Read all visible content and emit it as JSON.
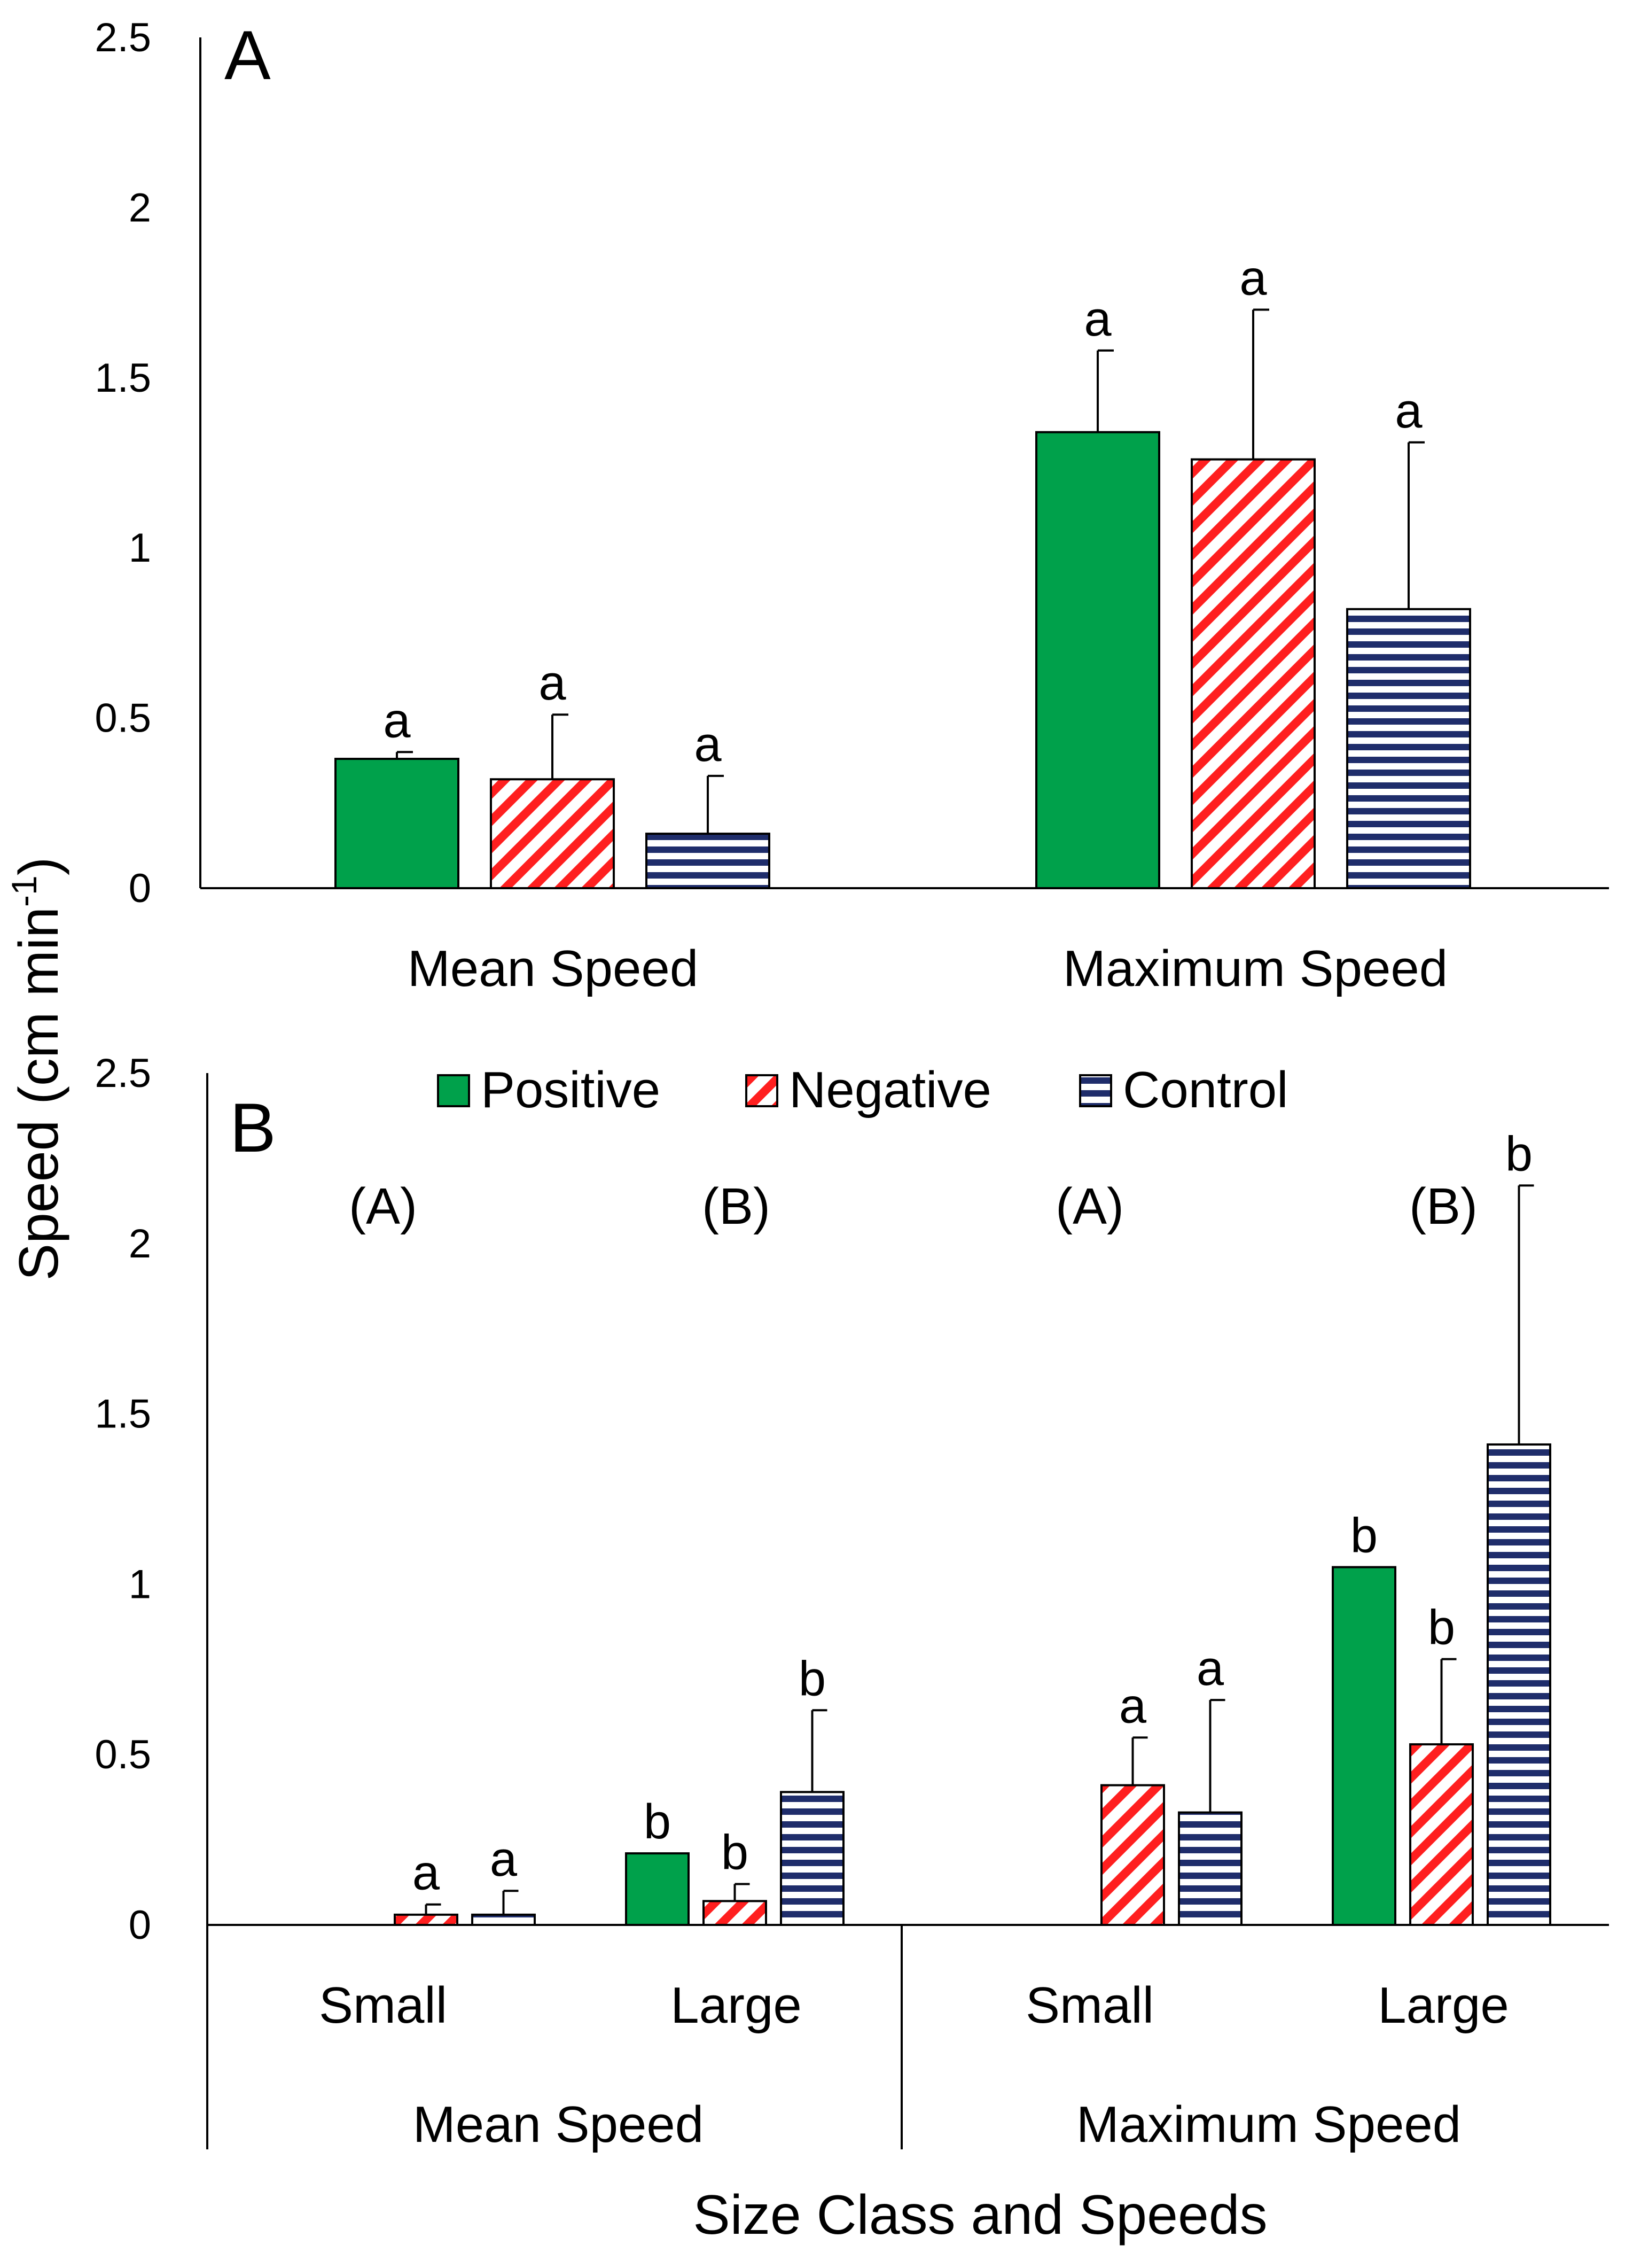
{
  "figure": {
    "ylabel": "Speed (cm min",
    "ylabel_sup": "-1",
    "ylabel_close": ")",
    "xlabel": "Size Class and Speeds"
  },
  "legend": [
    {
      "name": "Positive",
      "pattern": "solid"
    },
    {
      "name": "Negative",
      "pattern": "diagonal"
    },
    {
      "name": "Control",
      "pattern": "horizontal"
    }
  ],
  "colors": {
    "positive": "#00A14B",
    "negative": "#FF1F1F",
    "control": "#1F2D6B",
    "axis": "#000000"
  },
  "chart_data": [
    {
      "panel": "A",
      "type": "bar",
      "ylim": [
        0,
        2.5
      ],
      "yticks": [
        "0",
        "0.5",
        "1",
        "1.5",
        "2",
        "2.5"
      ],
      "categories": [
        "Mean Speed",
        "Maximum Speed"
      ],
      "series": [
        {
          "name": "Positive",
          "values": [
            0.38,
            1.34
          ],
          "errors": [
            0.02,
            0.24
          ],
          "letters": [
            "a",
            "a"
          ]
        },
        {
          "name": "Negative",
          "values": [
            0.32,
            1.26
          ],
          "errors": [
            0.19,
            0.44
          ],
          "letters": [
            "a",
            "a"
          ]
        },
        {
          "name": "Control",
          "values": [
            0.16,
            0.82
          ],
          "errors": [
            0.17,
            0.49
          ],
          "letters": [
            "a",
            "a"
          ]
        }
      ]
    },
    {
      "panel": "B",
      "type": "bar",
      "ylim": [
        0,
        2.5
      ],
      "yticks": [
        "0",
        "0.5",
        "1",
        "1.5",
        "2",
        "2.5"
      ],
      "groups": [
        "Mean Speed",
        "Maximum Speed"
      ],
      "categories": [
        "Small",
        "Large",
        "Small",
        "Large"
      ],
      "group_of_category": [
        0,
        0,
        1,
        1
      ],
      "group_letters": [
        "(A)",
        "(B)",
        "(A)",
        "(B)"
      ],
      "series": [
        {
          "name": "Positive",
          "values": [
            null,
            0.21,
            null,
            1.05
          ],
          "errors": [
            null,
            0,
            null,
            0
          ],
          "letters": [
            "",
            "b",
            "",
            "b"
          ]
        },
        {
          "name": "Negative",
          "values": [
            0.03,
            0.07,
            0.41,
            0.53
          ],
          "errors": [
            0.03,
            0.05,
            0.14,
            0.25
          ],
          "letters": [
            "a",
            "b",
            "a",
            "b"
          ]
        },
        {
          "name": "Control",
          "values": [
            0.03,
            0.39,
            0.33,
            1.41
          ],
          "errors": [
            0.07,
            0.24,
            0.33,
            0.76
          ],
          "letters": [
            "a",
            "b",
            "a",
            "b"
          ]
        }
      ]
    }
  ]
}
